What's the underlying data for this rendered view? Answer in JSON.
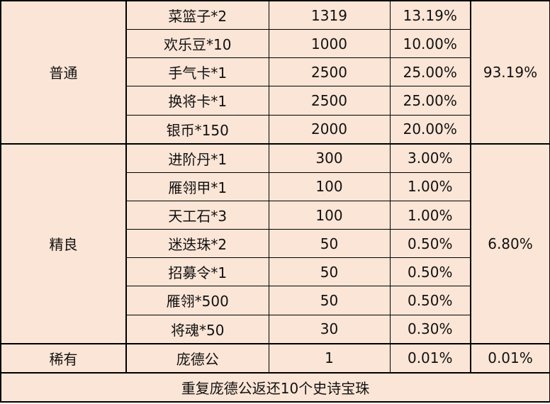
{
  "groups": [
    {
      "name": "普通",
      "total": "93.19%",
      "items": [
        {
          "item": "菜篮子*2",
          "weight": "1319",
          "prob": "13.19%"
        },
        {
          "item": "欢乐豆*10",
          "weight": "1000",
          "prob": "10.00%"
        },
        {
          "item": "手气卡*1",
          "weight": "2500",
          "prob": "25.00%"
        },
        {
          "item": "换将卡*1",
          "weight": "2500",
          "prob": "25.00%"
        },
        {
          "item": "银币*150",
          "weight": "2000",
          "prob": "20.00%"
        }
      ]
    },
    {
      "name": "精良",
      "total": "6.80%",
      "items": [
        {
          "item": "进阶丹*1",
          "weight": "300",
          "prob": "3.00%"
        },
        {
          "item": "雁翎甲*1",
          "weight": "100",
          "prob": "1.00%"
        },
        {
          "item": "天工石*3",
          "weight": "100",
          "prob": "1.00%"
        },
        {
          "item": "迷迭珠*2",
          "weight": "50",
          "prob": "0.50%"
        },
        {
          "item": "招募令*1",
          "weight": "50",
          "prob": "0.50%"
        },
        {
          "item": "雁翎*500",
          "weight": "50",
          "prob": "0.50%"
        },
        {
          "item": "将魂*50",
          "weight": "30",
          "prob": "0.30%"
        }
      ]
    },
    {
      "name": "稀有",
      "total": "0.01%",
      "items": [
        {
          "item": "庞德公",
          "weight": "1",
          "prob": "0.01%"
        }
      ]
    }
  ],
  "footer": "重复庞德公返还10个史诗宝珠",
  "colors": {
    "background": "#FBE5D6",
    "border": "#000000"
  }
}
